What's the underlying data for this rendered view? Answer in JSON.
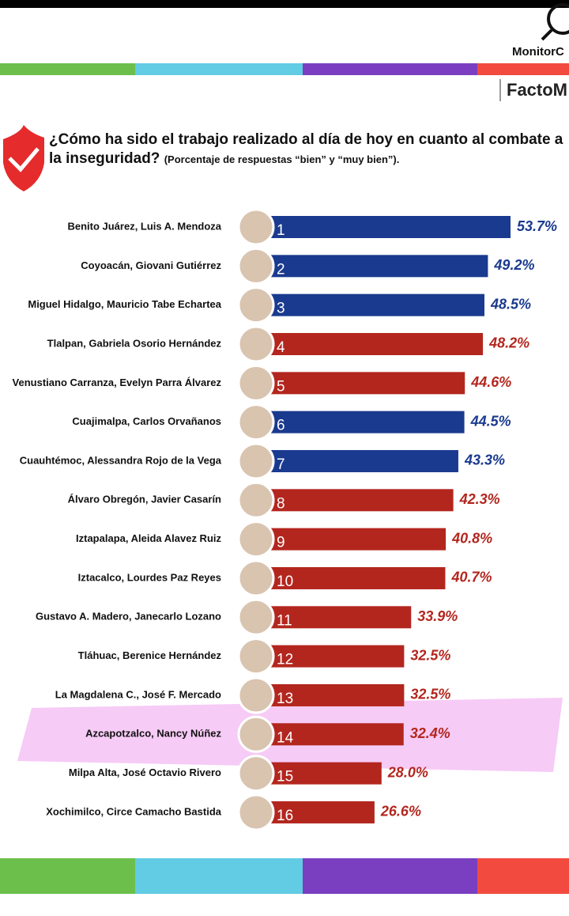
{
  "brand": "MonitorC",
  "sub_brand": "FactoM",
  "chart_data": {
    "type": "bar",
    "orientation": "horizontal",
    "title": "¿Cómo ha sido el trabajo realizado al día de hoy en cuanto al combate a la inseguridad?",
    "subtitle": "(Porcentaje de respuestas “bien” y “muy bien”).",
    "categories": [
      "Benito Juárez, Luis A. Mendoza",
      "Coyoacán, Giovani Gutiérrez",
      "Miguel Hidalgo, Mauricio Tabe Echartea",
      "Tlalpan, Gabriela Osorio Hernández",
      "Venustiano Carranza, Evelyn Parra Álvarez",
      "Cuajimalpa, Carlos Orvañanos",
      "Cuauhtémoc, Alessandra Rojo de la Vega",
      "Álvaro Obregón, Javier Casarín",
      "Iztapalapa, Aleida Alavez Ruiz",
      "Iztacalco, Lourdes Paz Reyes",
      "Gustavo A. Madero, Janecarlo Lozano",
      "Tláhuac, Berenice Hernández",
      "La Magdalena C., José F. Mercado",
      "Azcapotzalco, Nancy Núñez",
      "Milpa Alta, José Octavio Rivero",
      "Xochimilco, Circe Camacho Bastida"
    ],
    "ranks": [
      1,
      2,
      3,
      4,
      5,
      6,
      7,
      8,
      9,
      10,
      11,
      12,
      13,
      14,
      15,
      16
    ],
    "values": [
      53.7,
      49.2,
      48.5,
      48.2,
      44.6,
      44.5,
      43.3,
      42.3,
      40.8,
      40.7,
      33.9,
      32.5,
      32.5,
      32.4,
      28.0,
      26.6
    ],
    "value_labels": [
      "53.7%",
      "49.2%",
      "48.5%",
      "48.2%",
      "44.6%",
      "44.5%",
      "43.3%",
      "42.3%",
      "40.8%",
      "40.7%",
      "33.9%",
      "32.5%",
      "32.5%",
      "32.4%",
      "28.0%",
      "26.6%"
    ],
    "colors": [
      "#1a3a8f",
      "#1a3a8f",
      "#1a3a8f",
      "#b3261e",
      "#b3261e",
      "#1a3a8f",
      "#1a3a8f",
      "#b3261e",
      "#b3261e",
      "#b3261e",
      "#b3261e",
      "#b3261e",
      "#b3261e",
      "#b3261e",
      "#b3261e",
      "#b3261e"
    ]
  }
}
